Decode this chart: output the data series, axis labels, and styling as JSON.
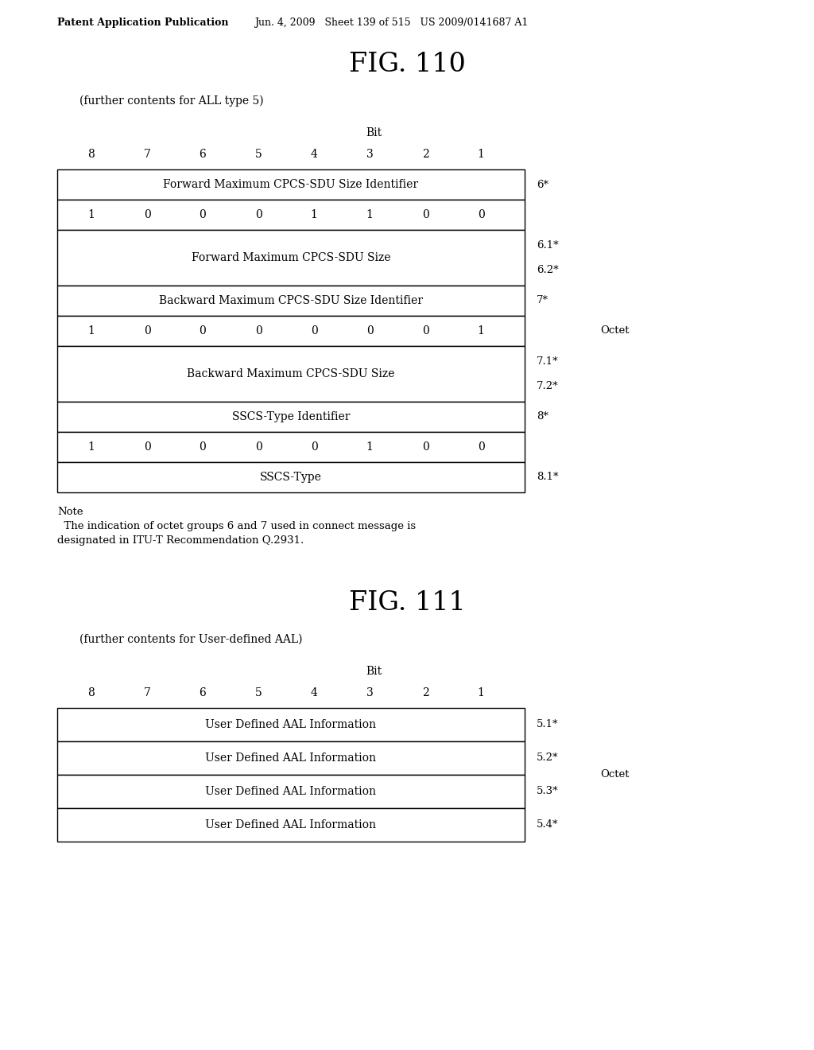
{
  "bg_color": "#ffffff",
  "header_text": "Patent Application Publication",
  "header_date": "Jun. 4, 2009   Sheet 139 of 515   US 2009/0141687 A1",
  "fig1_title": "FIG. 110",
  "fig1_subtitle": "(further contents for ALL type 5)",
  "fig2_title": "FIG. 111",
  "fig2_subtitle": "(further contents for User-defined AAL)",
  "bit_label": "Bit",
  "bit_numbers": [
    "8",
    "7",
    "6",
    "5",
    "4",
    "3",
    "2",
    "1"
  ],
  "octet_label": "Octet",
  "note_text": "Note\n  The indication of octet groups 6 and 7 used in connect message is\ndesignated in ITU-T Recommendation Q.2931.",
  "fig1_rows": [
    {
      "type": "header_bits",
      "label": "Forward Maximum CPCS-SDU Size Identifier",
      "bits": [
        "1",
        "0",
        "0",
        "0",
        "1",
        "1",
        "0",
        "0"
      ],
      "octet": "6*"
    },
    {
      "type": "span",
      "label": "Forward Maximum CPCS-SDU Size",
      "octet1": "6.1*",
      "octet2": "6.2*"
    },
    {
      "type": "header_bits",
      "label": "Backward Maximum CPCS-SDU Size Identifier",
      "bits": [
        "1",
        "0",
        "0",
        "0",
        "0",
        "0",
        "0",
        "1"
      ],
      "octet": "7*"
    },
    {
      "type": "span",
      "label": "Backward Maximum CPCS-SDU Size",
      "octet1": "7.1*",
      "octet2": "7.2*"
    },
    {
      "type": "header_bits",
      "label": "SSCS-Type Identifier",
      "bits": [
        "1",
        "0",
        "0",
        "0",
        "0",
        "1",
        "0",
        "0"
      ],
      "octet": "8*"
    },
    {
      "type": "simple",
      "label": "SSCS-Type",
      "octet": "8.1*"
    }
  ],
  "fig2_rows": [
    {
      "label": "User Defined AAL Information",
      "octet": "5.1*"
    },
    {
      "label": "User Defined AAL Information",
      "octet": "5.2*"
    },
    {
      "label": "User Defined AAL Information",
      "octet": "5.3*"
    },
    {
      "label": "User Defined AAL Information",
      "octet": "5.4*"
    }
  ]
}
